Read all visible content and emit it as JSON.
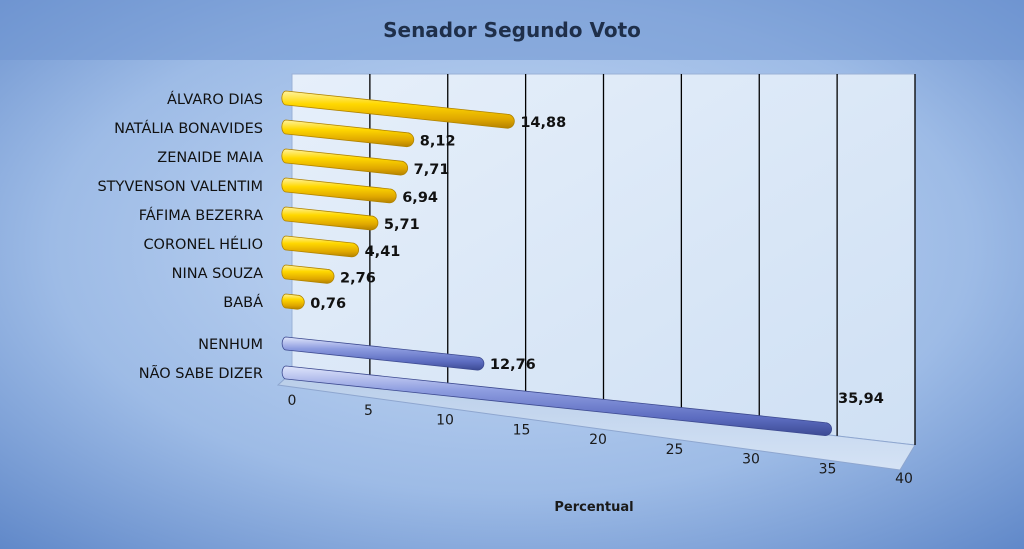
{
  "chart_data": {
    "type": "bar",
    "orientation": "horizontal",
    "title": "Senador Segundo Voto",
    "xlabel": "Percentual",
    "ylabel": "",
    "xlim": [
      0,
      40
    ],
    "xticks": [
      "0",
      "5",
      "10",
      "15",
      "20",
      "25",
      "30",
      "35",
      "40"
    ],
    "grid": true,
    "legend": "none",
    "categories": [
      "ÁLVARO DIAS",
      "NATÁLIA BONAVIDES",
      "ZENAIDE MAIA",
      "STYVENSON VALENTIM",
      "FÁFIMA BEZERRA",
      "CORONEL HÉLIO",
      "NINA SOUZA",
      "BABÁ",
      "NENHUM",
      "NÃO SABE DIZER"
    ],
    "values": [
      14.88,
      8.12,
      7.71,
      6.94,
      5.71,
      4.41,
      2.76,
      0.76,
      12.76,
      35.94
    ],
    "value_labels": [
      "14,88",
      "8,12",
      "7,71",
      "6,94",
      "5,71",
      "4,41",
      "2,76",
      "0,76",
      "12,76",
      "35,94"
    ],
    "bar_colors": [
      "#f2c200",
      "#f2c200",
      "#f2c200",
      "#f2c200",
      "#f2c200",
      "#f2c200",
      "#f2c200",
      "#f2c200",
      "#7f8fd6",
      "#7f8fd6"
    ]
  },
  "colors": {
    "background_outer": "#5f87c8",
    "background_inner": "#a9c4ec",
    "wall": "#d6e5f7",
    "floor": "#c2d5ee",
    "gridline": "#000000",
    "candidate_bar": "#f2c200",
    "other_bar": "#7f8fd6"
  }
}
